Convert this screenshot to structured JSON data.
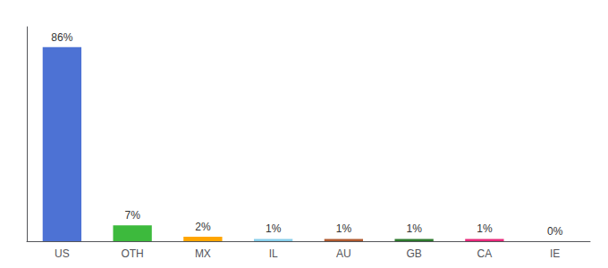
{
  "chart_data": {
    "type": "bar",
    "categories": [
      "US",
      "OTH",
      "MX",
      "IL",
      "AU",
      "GB",
      "CA",
      "IE"
    ],
    "values": [
      86,
      7,
      2,
      1,
      1,
      1,
      1,
      0
    ],
    "value_labels": [
      "86%",
      "7%",
      "2%",
      "1%",
      "1%",
      "1%",
      "1%",
      "0%"
    ],
    "colors": [
      "#4d72d4",
      "#3dba3d",
      "#ffa500",
      "#87ceeb",
      "#b05a2f",
      "#2d7a2d",
      "#e8297a",
      "#aaaaaa"
    ],
    "ylim": [
      0,
      95
    ],
    "data_labels": true,
    "tick_labels": "x",
    "grid": false
  }
}
